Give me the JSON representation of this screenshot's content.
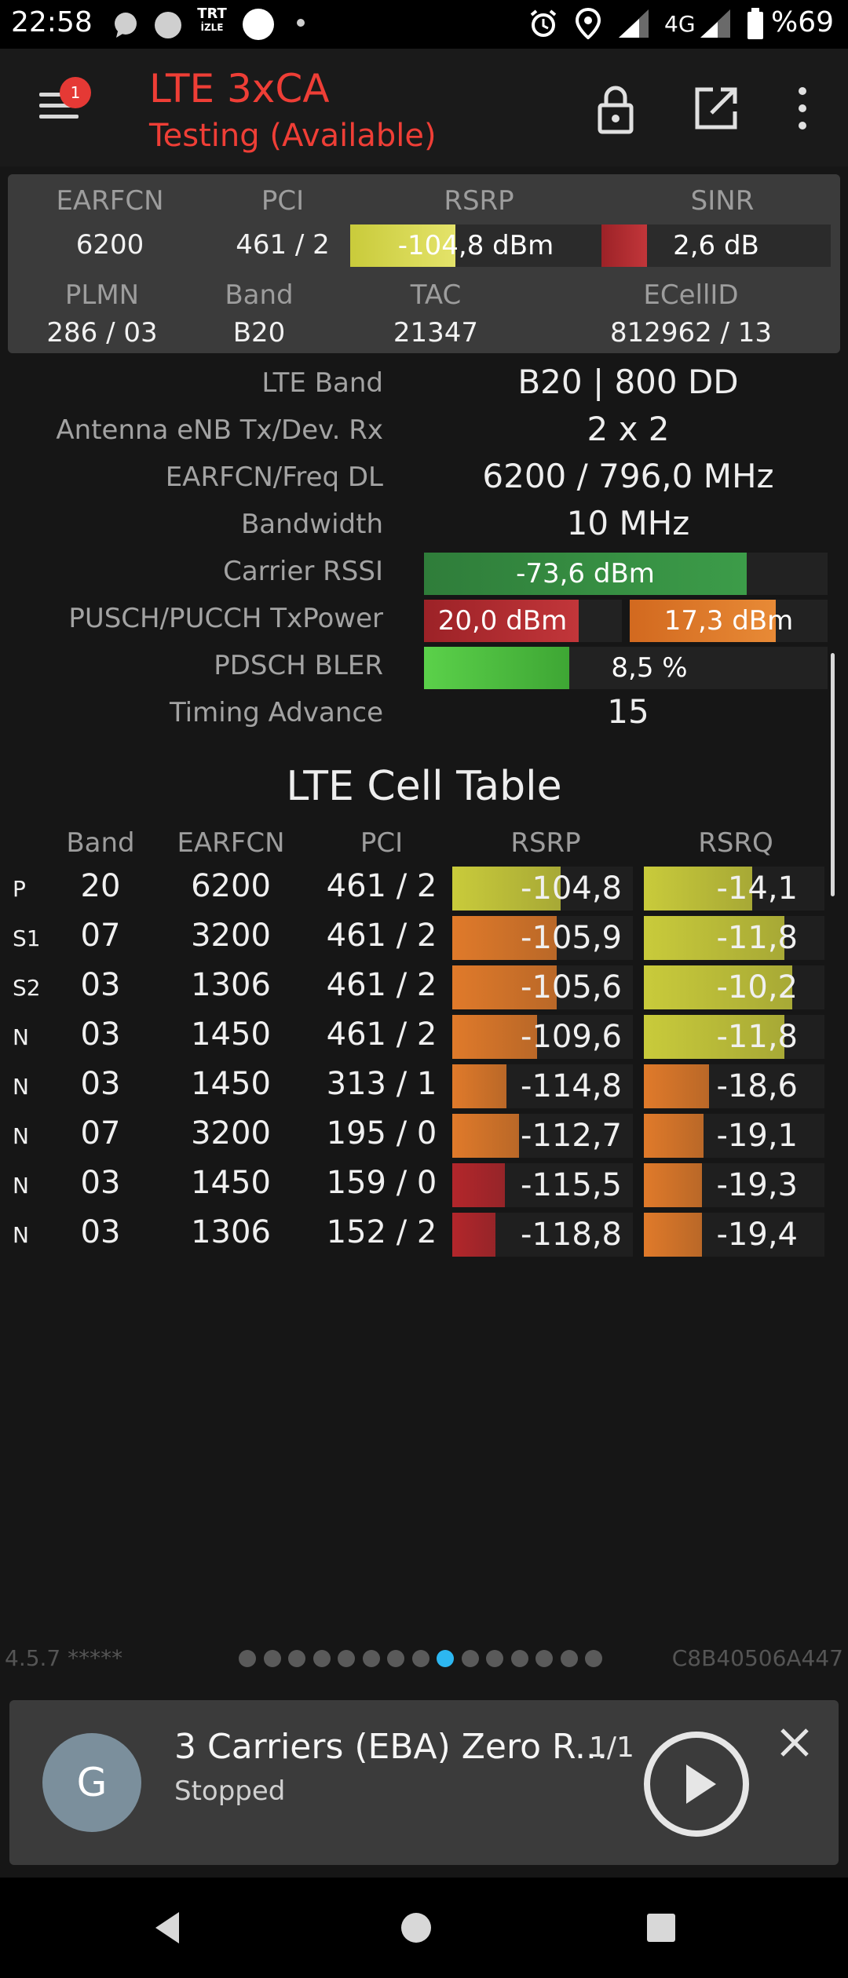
{
  "status_bar": {
    "time": "22:58",
    "trt_label_top": "TRT",
    "trt_label_bottom": "İZLE",
    "network": "4G",
    "battery": "%69"
  },
  "app_bar": {
    "menu_badge": "1",
    "title": "LTE 3xCA",
    "subtitle": "Testing (Available)",
    "accent_color": "#ef3e36"
  },
  "serving": {
    "labels": {
      "earfcn": "EARFCN",
      "pci": "PCI",
      "rsrp": "RSRP",
      "sinr": "SINR",
      "plmn": "PLMN",
      "band": "Band",
      "tac": "TAC",
      "ecellid": "ECellID"
    },
    "earfcn": "6200",
    "pci": "461 / 2",
    "rsrp": "-104,8 dBm",
    "rsrp_level": 0.42,
    "sinr": "2,6 dB",
    "sinr_level": 0.2,
    "plmn": "286 / 03",
    "band": "B20",
    "tac": "21347",
    "ecellid": "812962 / 13"
  },
  "details": {
    "lte_band_label": "LTE Band",
    "lte_band": "B20 | 800 DD",
    "antenna_label": "Antenna eNB Tx/Dev. Rx",
    "antenna": "2 x 2",
    "freq_label": "EARFCN/Freq DL",
    "freq": "6200 / 796,0 MHz",
    "bandwidth_label": "Bandwidth",
    "bandwidth": "10 MHz",
    "rssi_label": "Carrier RSSI",
    "rssi": "-73,6 dBm",
    "rssi_level": 0.8,
    "txpower_label": "PUSCH/PUCCH TxPower",
    "pusch": "20,0 dBm",
    "pusch_level": 0.78,
    "pucch": "17,3 dBm",
    "pucch_level": 0.74,
    "bler_label": "PDSCH BLER",
    "bler": "8,5 %",
    "bler_level": 0.36,
    "ta_label": "Timing Advance",
    "ta": "15"
  },
  "cell_table": {
    "title": "LTE Cell Table",
    "headers": [
      "Band",
      "EARFCN",
      "PCI",
      "RSRP",
      "RSRQ"
    ],
    "rows": [
      {
        "type": "P",
        "band": "20",
        "earfcn": "6200",
        "pci": "461 / 2",
        "rsrp": "-104,8",
        "rsrp_level": 0.6,
        "rsrp_color": "#c9cb3b",
        "rsrq": "-14,1",
        "rsrq_level": 0.6,
        "rsrq_color": "#c9cb3b"
      },
      {
        "type": "S1",
        "band": "07",
        "earfcn": "3200",
        "pci": "461 / 2",
        "rsrp": "-105,9",
        "rsrp_level": 0.58,
        "rsrp_color": "#e07a2a",
        "rsrq": "-11,8",
        "rsrq_level": 0.78,
        "rsrq_color": "#c9cb3b"
      },
      {
        "type": "S2",
        "band": "03",
        "earfcn": "1306",
        "pci": "461 / 2",
        "rsrp": "-105,6",
        "rsrp_level": 0.58,
        "rsrp_color": "#e07a2a",
        "rsrq": "-10,2",
        "rsrq_level": 0.82,
        "rsrq_color": "#c9cb3b"
      },
      {
        "type": "N",
        "band": "03",
        "earfcn": "1450",
        "pci": "461 / 2",
        "rsrp": "-109,6",
        "rsrp_level": 0.47,
        "rsrp_color": "#e07a2a",
        "rsrq": "-11,8",
        "rsrq_level": 0.78,
        "rsrq_color": "#c9cb3b"
      },
      {
        "type": "N",
        "band": "03",
        "earfcn": "1450",
        "pci": "313 / 1",
        "rsrp": "-114,8",
        "rsrp_level": 0.3,
        "rsrp_color": "#e07a2a",
        "rsrq": "-18,6",
        "rsrq_level": 0.36,
        "rsrq_color": "#e07a2a"
      },
      {
        "type": "N",
        "band": "07",
        "earfcn": "3200",
        "pci": "195 / 0",
        "rsrp": "-112,7",
        "rsrp_level": 0.37,
        "rsrp_color": "#e07a2a",
        "rsrq": "-19,1",
        "rsrq_level": 0.33,
        "rsrq_color": "#e07a2a"
      },
      {
        "type": "N",
        "band": "03",
        "earfcn": "1450",
        "pci": "159 / 0",
        "rsrp": "-115,5",
        "rsrp_level": 0.29,
        "rsrp_color": "#b3262b",
        "rsrq": "-19,3",
        "rsrq_level": 0.32,
        "rsrq_color": "#e07a2a"
      },
      {
        "type": "N",
        "band": "03",
        "earfcn": "1306",
        "pci": "152 / 2",
        "rsrp": "-118,8",
        "rsrp_level": 0.24,
        "rsrp_color": "#b3262b",
        "rsrq": "-19,4",
        "rsrq_level": 0.32,
        "rsrq_color": "#e07a2a"
      }
    ]
  },
  "footer": {
    "version": "4.5.7 *****",
    "device_id": "C8B40506A447",
    "page_count": 15,
    "active_page": 8
  },
  "media": {
    "avatar_letter": "G",
    "title": "3 Carriers (EBA) Zero R...",
    "count": "1/1",
    "status": "Stopped"
  }
}
